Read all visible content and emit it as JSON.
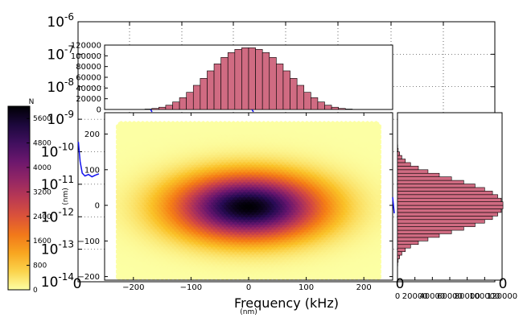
{
  "chart_data": [
    {
      "id": "background_psd",
      "type": "line",
      "xlabel": "Frequency (kHz)",
      "ylabel": "",
      "yscale": "log",
      "ylim": [
        1e-14,
        1e-06
      ],
      "xlim": [
        0,
        120000
      ],
      "y_tick_labels": [
        "10",
        "10",
        "10",
        "10",
        "10",
        "10",
        "10",
        "10",
        "10"
      ],
      "y_tick_exponents": [
        "-6",
        "-7",
        "-8",
        "-9",
        "-10",
        "-11",
        "-12",
        "-13",
        "-14"
      ],
      "x_tick_labels_visible": [
        "0",
        "0",
        "0"
      ],
      "grid": true,
      "series": [
        {
          "color": "#1010ee",
          "points": [
            [
              100,
              2e-10
            ],
            [
              600,
              5e-11
            ],
            [
              1200,
              2.2e-11
            ],
            [
              2000,
              1.8e-11
            ],
            [
              3000,
              2e-11
            ],
            [
              4000,
              1.7e-11
            ],
            [
              5000,
              1.9e-11
            ],
            [
              6000,
              2.1e-11
            ]
          ]
        }
      ]
    },
    {
      "id": "top_histogram",
      "type": "bar",
      "xlim": [
        -250,
        250
      ],
      "ylim": [
        0,
        120000
      ],
      "y_tick_labels": [
        "0",
        "20000",
        "40000",
        "60000",
        "80000",
        "100000",
        "120000"
      ],
      "bin_width": 12,
      "bar_color": "#d06b82",
      "bins": [
        -216,
        -204,
        -192,
        -180,
        -168,
        -156,
        -144,
        -132,
        -120,
        -108,
        -96,
        -84,
        -72,
        -60,
        -48,
        -36,
        -24,
        -12,
        0,
        12,
        24,
        36,
        48,
        60,
        72,
        84,
        96,
        108,
        120,
        132,
        144,
        156,
        168,
        180,
        192,
        204
      ],
      "values": [
        0,
        0,
        300,
        800,
        2000,
        4200,
        8000,
        14000,
        22000,
        32000,
        45000,
        58000,
        72000,
        85000,
        97000,
        106000,
        112000,
        115000,
        115000,
        112000,
        106000,
        97000,
        85000,
        72000,
        58000,
        45000,
        32000,
        22000,
        14000,
        8000,
        4200,
        2000,
        800,
        300,
        0,
        0
      ]
    },
    {
      "id": "hexbin_density",
      "type": "heatmap",
      "xlabel": "(nm)",
      "ylabel": "(nm)",
      "xlim": [
        -250,
        250
      ],
      "ylim": [
        -210,
        260
      ],
      "x_tick_labels": [
        "−200",
        "−100",
        "0",
        "100",
        "200"
      ],
      "x_tick_values": [
        -200,
        -100,
        0,
        100,
        200
      ],
      "y_tick_labels": [
        "−200",
        "−100",
        "0",
        "100",
        "200"
      ],
      "y_tick_values": [
        -200,
        -100,
        0,
        100,
        200
      ],
      "extent": {
        "x": [
          -225,
          225
        ],
        "y": [
          -200,
          230
        ]
      },
      "peak": 6000,
      "sigma_x": 85,
      "sigma_y": 60,
      "colormap": "inferno_r"
    },
    {
      "id": "right_histogram",
      "type": "bar",
      "orientation": "horizontal",
      "ylim": [
        -210,
        260
      ],
      "xlim": [
        0,
        120000
      ],
      "x_tick_labels": [
        "0",
        "20000",
        "40000",
        "60000",
        "80000",
        "100000",
        "120000"
      ],
      "bin_width": 10,
      "bar_color": "#d06b82",
      "bins": [
        -170,
        -160,
        -150,
        -140,
        -130,
        -120,
        -110,
        -100,
        -90,
        -80,
        -70,
        -60,
        -50,
        -40,
        -30,
        -20,
        -10,
        0,
        10,
        20,
        30,
        40,
        50,
        60,
        70,
        80,
        90,
        100,
        110,
        120,
        130,
        140,
        150,
        160,
        170
      ],
      "values": [
        300,
        800,
        2500,
        5000,
        9000,
        15000,
        24000,
        35000,
        48000,
        62000,
        76000,
        89000,
        100000,
        109000,
        115000,
        119000,
        121000,
        121000,
        119000,
        115000,
        109000,
        100000,
        89000,
        76000,
        62000,
        48000,
        35000,
        24000,
        15000,
        9000,
        5000,
        2500,
        800,
        300,
        0
      ]
    },
    {
      "id": "colorbar",
      "type": "heatmap",
      "title": "N",
      "range": [
        0,
        6000
      ],
      "tick_labels": [
        "0",
        "800",
        "1600",
        "2400",
        "3200",
        "4000",
        "4800",
        "5600"
      ],
      "tick_values": [
        0,
        800,
        1600,
        2400,
        3200,
        4000,
        4800,
        5600
      ],
      "colormap": "inferno_r"
    }
  ]
}
